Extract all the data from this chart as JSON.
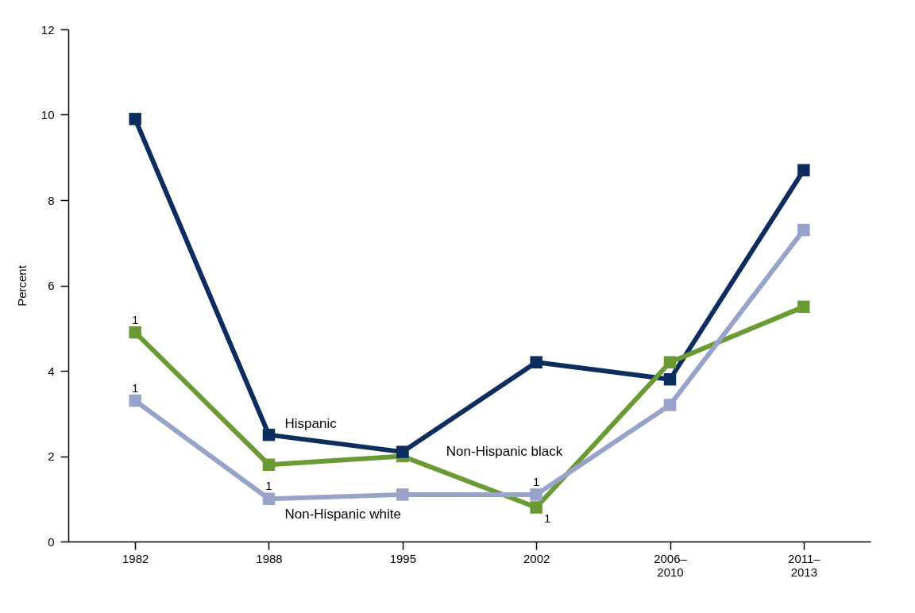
{
  "chart_data": {
    "type": "line",
    "ylabel": "Percent",
    "categories": [
      "1982",
      "1988",
      "1995",
      "2002",
      "2006–2010",
      "2011–2013"
    ],
    "series": [
      {
        "name": "Hispanic",
        "color": "#0d2d5e",
        "values": [
          9.9,
          2.5,
          2.1,
          4.2,
          3.8,
          8.7
        ]
      },
      {
        "name": "Non-Hispanic black",
        "color": "#6a9a34",
        "values": [
          4.9,
          1.8,
          2.0,
          0.8,
          4.2,
          5.5
        ]
      },
      {
        "name": "Non-Hispanic white",
        "color": "#97a3c8",
        "values": [
          3.3,
          1.0,
          1.1,
          1.1,
          3.2,
          7.3
        ]
      }
    ],
    "ylim": [
      0,
      12
    ],
    "yticks": [
      0,
      2,
      4,
      6,
      8,
      10,
      12
    ],
    "grid": false,
    "marker": "square",
    "line_style": "solid",
    "annotations": [
      {
        "text": "1",
        "x": "1982",
        "y": 4.9
      },
      {
        "text": "1",
        "x": "1982",
        "y": 3.3
      },
      {
        "text": "1",
        "x": "1988",
        "y": 1.0
      },
      {
        "text": "1",
        "x": "2002",
        "y": 1.1
      },
      {
        "text": "1",
        "x": "2002",
        "y": 0.8
      }
    ]
  }
}
